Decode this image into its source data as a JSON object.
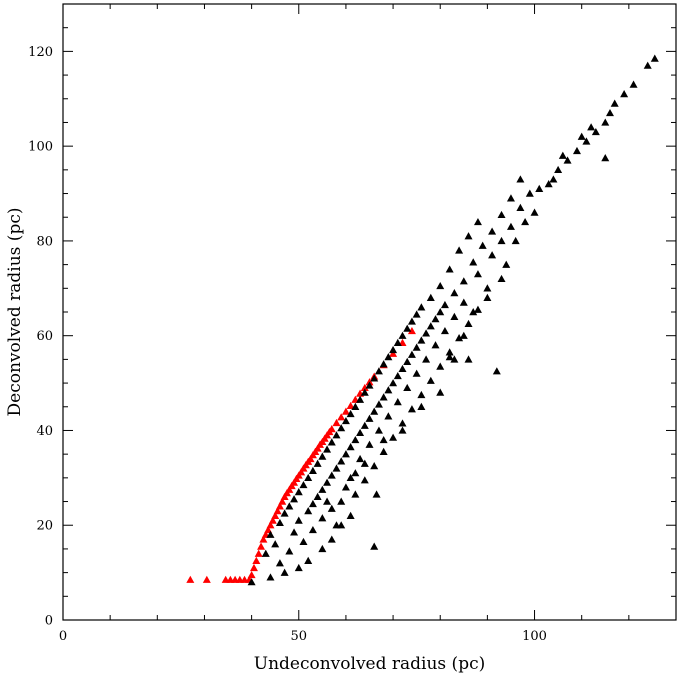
{
  "chart_data": {
    "type": "scatter",
    "title": "",
    "xlabel": "Undeconvolved radius (pc)",
    "ylabel": "Deconvolved radius (pc)",
    "xlim": [
      0,
      130
    ],
    "ylim": [
      0,
      130
    ],
    "x_ticks": [
      0,
      50,
      100
    ],
    "y_ticks": [
      0,
      20,
      40,
      60,
      80,
      100,
      120
    ],
    "x_minor_step": 10,
    "y_minor_step": 5,
    "grid": false,
    "marker": "triangle",
    "series": [
      {
        "color": "#ff0000",
        "points": [
          [
            27,
            8.5
          ],
          [
            30.5,
            8.5
          ],
          [
            34.5,
            8.5
          ],
          [
            35.5,
            8.5
          ],
          [
            36.5,
            8.5
          ],
          [
            37.5,
            8.5
          ],
          [
            38.5,
            8.5
          ],
          [
            39.5,
            8.5
          ],
          [
            40,
            9.5
          ],
          [
            40.5,
            11
          ],
          [
            41,
            12.5
          ],
          [
            41.5,
            14
          ],
          [
            42,
            15.5
          ],
          [
            42.5,
            17
          ],
          [
            43,
            18
          ],
          [
            43.5,
            19
          ],
          [
            44,
            20
          ],
          [
            44.5,
            21
          ],
          [
            45,
            22
          ],
          [
            45.5,
            23
          ],
          [
            46,
            24
          ],
          [
            46.5,
            25
          ],
          [
            47,
            26
          ],
          [
            47.5,
            26.8
          ],
          [
            48,
            27.5
          ],
          [
            48.5,
            28.3
          ],
          [
            49,
            29
          ],
          [
            49.5,
            29.8
          ],
          [
            50,
            30.5
          ],
          [
            50.5,
            31.2
          ],
          [
            51,
            32
          ],
          [
            51.5,
            32.7
          ],
          [
            52,
            33.4
          ],
          [
            52.5,
            34
          ],
          [
            53,
            34.8
          ],
          [
            53.5,
            35.5
          ],
          [
            54,
            36.2
          ],
          [
            54.5,
            37
          ],
          [
            55,
            37.6
          ],
          [
            55.5,
            38.3
          ],
          [
            56,
            39
          ],
          [
            56.5,
            39.7
          ],
          [
            57,
            40.3
          ],
          [
            58,
            41.6
          ],
          [
            59,
            42.8
          ],
          [
            60,
            44
          ],
          [
            61,
            45.2
          ],
          [
            62,
            46.5
          ],
          [
            63,
            47.8
          ],
          [
            64,
            49
          ],
          [
            65,
            50.2
          ],
          [
            66,
            51.4
          ],
          [
            68,
            53.8
          ],
          [
            70,
            56.2
          ],
          [
            72,
            58.5
          ],
          [
            74,
            61
          ]
        ]
      },
      {
        "color": "#000000",
        "points": [
          [
            40,
            8
          ],
          [
            44,
            9
          ],
          [
            47,
            10
          ],
          [
            50,
            11
          ],
          [
            46,
            12
          ],
          [
            52,
            12.5
          ],
          [
            43,
            14
          ],
          [
            48,
            14.5
          ],
          [
            55,
            15
          ],
          [
            45,
            16
          ],
          [
            51,
            16.5
          ],
          [
            57,
            17
          ],
          [
            44,
            18
          ],
          [
            49,
            18.5
          ],
          [
            53,
            19
          ],
          [
            59,
            20
          ],
          [
            46,
            20.5
          ],
          [
            50,
            21
          ],
          [
            55,
            21.5
          ],
          [
            61,
            22
          ],
          [
            47,
            22.5
          ],
          [
            52,
            23
          ],
          [
            57,
            23.5
          ],
          [
            48,
            24
          ],
          [
            53,
            24.5
          ],
          [
            59,
            25
          ],
          [
            49,
            25.5
          ],
          [
            54,
            26
          ],
          [
            62,
            26.5
          ],
          [
            50,
            27
          ],
          [
            55,
            27.5
          ],
          [
            60,
            28
          ],
          [
            51,
            28.5
          ],
          [
            56,
            29
          ],
          [
            64,
            29.5
          ],
          [
            52,
            30
          ],
          [
            57,
            30.5
          ],
          [
            62,
            31
          ],
          [
            53,
            31.5
          ],
          [
            58,
            32
          ],
          [
            66,
            32.5
          ],
          [
            54,
            33
          ],
          [
            59,
            33.5
          ],
          [
            63,
            34
          ],
          [
            55,
            34.5
          ],
          [
            60,
            35
          ],
          [
            68,
            35.5
          ],
          [
            56,
            36
          ],
          [
            61,
            36.5
          ],
          [
            65,
            37
          ],
          [
            57,
            37.5
          ],
          [
            62,
            38
          ],
          [
            70,
            38.5
          ],
          [
            58,
            39
          ],
          [
            63,
            39.5
          ],
          [
            67,
            40
          ],
          [
            59,
            40.5
          ],
          [
            64,
            41
          ],
          [
            72,
            41.5
          ],
          [
            60,
            42
          ],
          [
            65,
            42.5
          ],
          [
            69,
            43
          ],
          [
            61,
            43.5
          ],
          [
            66,
            44
          ],
          [
            74,
            44.5
          ],
          [
            62,
            45
          ],
          [
            67,
            45.5
          ],
          [
            71,
            46
          ],
          [
            63,
            46.5
          ],
          [
            68,
            47
          ],
          [
            76,
            47.5
          ],
          [
            64,
            48
          ],
          [
            69,
            48.5
          ],
          [
            73,
            49
          ],
          [
            65,
            49.5
          ],
          [
            70,
            50
          ],
          [
            78,
            50.5
          ],
          [
            66,
            51
          ],
          [
            71,
            51.5
          ],
          [
            75,
            52
          ],
          [
            67,
            52.5
          ],
          [
            72,
            53
          ],
          [
            80,
            53.5
          ],
          [
            68,
            54
          ],
          [
            73,
            54.5
          ],
          [
            77,
            55
          ],
          [
            69,
            55.5
          ],
          [
            74,
            56
          ],
          [
            82,
            56.5
          ],
          [
            70,
            57
          ],
          [
            75,
            57.5
          ],
          [
            79,
            58
          ],
          [
            71,
            58.5
          ],
          [
            76,
            59
          ],
          [
            84,
            59.5
          ],
          [
            72,
            60
          ],
          [
            77,
            60.5
          ],
          [
            81,
            61
          ],
          [
            73,
            61.5
          ],
          [
            78,
            62
          ],
          [
            86,
            62.5
          ],
          [
            74,
            63
          ],
          [
            79,
            63.5
          ],
          [
            83,
            64
          ],
          [
            75,
            64.5
          ],
          [
            80,
            65
          ],
          [
            88,
            65.5
          ],
          [
            76,
            66
          ],
          [
            81,
            66.5
          ],
          [
            85,
            67
          ],
          [
            78,
            68
          ],
          [
            83,
            69
          ],
          [
            90,
            70
          ],
          [
            80,
            70.5
          ],
          [
            85,
            71.5
          ],
          [
            88,
            73
          ],
          [
            82,
            74
          ],
          [
            87,
            75.5
          ],
          [
            91,
            77
          ],
          [
            84,
            78
          ],
          [
            89,
            79
          ],
          [
            93,
            80
          ],
          [
            86,
            81
          ],
          [
            91,
            82
          ],
          [
            95,
            83
          ],
          [
            88,
            84
          ],
          [
            93,
            85.5
          ],
          [
            97,
            87
          ],
          [
            95,
            89
          ],
          [
            99,
            90
          ],
          [
            101,
            91
          ],
          [
            103,
            92
          ],
          [
            97,
            93
          ],
          [
            105,
            95
          ],
          [
            107,
            97
          ],
          [
            109,
            99
          ],
          [
            111,
            101
          ],
          [
            113,
            103
          ],
          [
            115,
            105
          ],
          [
            116,
            107
          ],
          [
            117,
            109
          ],
          [
            119,
            111
          ],
          [
            121,
            113
          ],
          [
            115,
            97.5
          ],
          [
            124,
            117
          ],
          [
            125.5,
            118.5
          ],
          [
            82,
            55.5
          ],
          [
            83,
            55
          ],
          [
            92,
            52.5
          ],
          [
            66,
            15.5
          ],
          [
            66.5,
            26.5
          ],
          [
            58,
            20
          ],
          [
            61,
            30
          ],
          [
            64,
            33
          ],
          [
            56,
            25
          ],
          [
            68,
            38
          ],
          [
            72,
            40
          ],
          [
            76,
            45
          ],
          [
            80,
            48
          ],
          [
            86,
            55
          ],
          [
            87,
            65
          ],
          [
            85,
            60
          ],
          [
            90,
            68
          ],
          [
            94,
            75
          ],
          [
            93,
            72
          ],
          [
            96,
            80
          ],
          [
            98,
            84
          ],
          [
            100,
            86
          ],
          [
            104,
            93
          ],
          [
            106,
            98
          ],
          [
            110,
            102
          ],
          [
            112,
            104
          ]
        ]
      }
    ]
  }
}
